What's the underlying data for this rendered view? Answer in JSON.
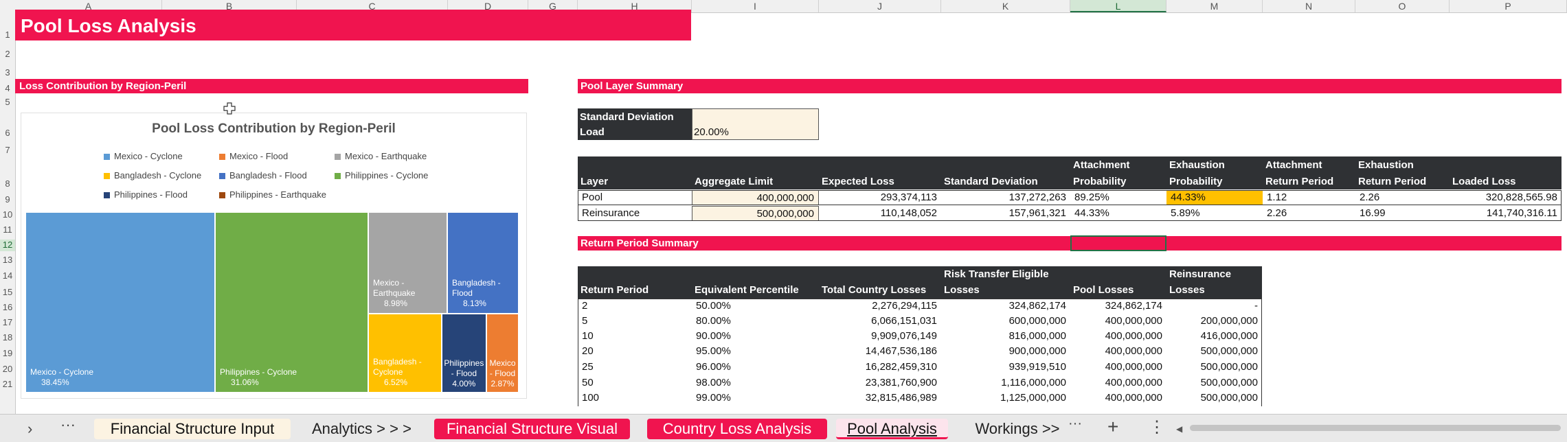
{
  "columns": [
    "A",
    "B",
    "C",
    "D",
    "G",
    "H",
    "I",
    "J",
    "K",
    "L",
    "M",
    "N",
    "O",
    "P"
  ],
  "rows": [
    "1",
    "2",
    "3",
    "4",
    "5",
    "6",
    "7",
    "8",
    "9",
    "10",
    "11",
    "12",
    "13",
    "14",
    "15",
    "16",
    "17",
    "18",
    "19",
    "20",
    "21"
  ],
  "title": "Pool Loss Analysis",
  "section_left": "Loss Contribution by Region-Peril",
  "section_pool_layer": "Pool Layer Summary",
  "section_return_period": "Return Period Summary",
  "std_dev_load": {
    "label_line1": "Standard Deviation",
    "label_line2": "Load",
    "value": "20.00%"
  },
  "layer_table": {
    "headers": [
      {
        "l1": "",
        "l2": "Layer"
      },
      {
        "l1": "",
        "l2": "Aggregate Limit"
      },
      {
        "l1": "",
        "l2": "Expected Loss"
      },
      {
        "l1": "",
        "l2": "Standard Deviation"
      },
      {
        "l1": "Attachment",
        "l2": "Probability"
      },
      {
        "l1": "Exhaustion",
        "l2": "Probability"
      },
      {
        "l1": "Attachment",
        "l2": "Return Period"
      },
      {
        "l1": "Exhaustion",
        "l2": "Return Period"
      },
      {
        "l1": "",
        "l2": "Loaded Loss"
      }
    ],
    "rows": [
      [
        "Pool",
        "400,000,000",
        "293,374,113",
        "137,272,263",
        "89.25%",
        "44.33%",
        "1.12",
        "2.26",
        "320,828,565.98"
      ],
      [
        "Reinsurance",
        "500,000,000",
        "110,148,052",
        "157,961,321",
        "44.33%",
        "5.89%",
        "2.26",
        "16.99",
        "141,740,316.11"
      ]
    ]
  },
  "rp_table": {
    "headers": [
      {
        "l1": "",
        "l2": "Return Period"
      },
      {
        "l1": "",
        "l2": "Equivalent Percentile"
      },
      {
        "l1": "",
        "l2": "Total Country Losses"
      },
      {
        "l1": "Risk Transfer Eligible",
        "l2": "Losses"
      },
      {
        "l1": "",
        "l2": "Pool Losses"
      },
      {
        "l1": "Reinsurance",
        "l2": "Losses"
      }
    ],
    "rows": [
      [
        "2",
        "50.00%",
        "2,276,294,115",
        "324,862,174",
        "324,862,174",
        "-"
      ],
      [
        "5",
        "80.00%",
        "6,066,151,031",
        "600,000,000",
        "400,000,000",
        "200,000,000"
      ],
      [
        "10",
        "90.00%",
        "9,909,076,149",
        "816,000,000",
        "400,000,000",
        "416,000,000"
      ],
      [
        "20",
        "95.00%",
        "14,467,536,186",
        "900,000,000",
        "400,000,000",
        "500,000,000"
      ],
      [
        "25",
        "96.00%",
        "16,282,459,310",
        "939,919,510",
        "400,000,000",
        "500,000,000"
      ],
      [
        "50",
        "98.00%",
        "23,381,760,900",
        "1,116,000,000",
        "400,000,000",
        "500,000,000"
      ],
      [
        "100",
        "99.00%",
        "32,815,486,989",
        "1,125,000,000",
        "400,000,000",
        "500,000,000"
      ]
    ]
  },
  "chart_data": {
    "type": "treemap",
    "title": "Pool Loss Contribution by Region-Peril",
    "legend": [
      {
        "name": "Mexico - Cyclone",
        "color": "#5b9bd5"
      },
      {
        "name": "Mexico - Flood",
        "color": "#ed7d31"
      },
      {
        "name": "Mexico - Earthquake",
        "color": "#a5a5a5"
      },
      {
        "name": "Bangladesh - Cyclone",
        "color": "#ffc000"
      },
      {
        "name": "Bangladesh - Flood",
        "color": "#4472c4"
      },
      {
        "name": "Philippines - Cyclone",
        "color": "#70ad47"
      },
      {
        "name": "Philippines - Flood",
        "color": "#264478"
      },
      {
        "name": "Philippines - Earthquake",
        "color": "#9e480e"
      }
    ],
    "cells": [
      {
        "label": "Mexico - Cyclone",
        "pct": "38.45%",
        "value": 38.45,
        "color": "#5b9bd5"
      },
      {
        "label": "Philippines - Cyclone",
        "pct": "31.06%",
        "value": 31.06,
        "color": "#70ad47"
      },
      {
        "label": "Mexico - Earthquake",
        "pct": "8.98%",
        "value": 8.98,
        "color": "#a5a5a5"
      },
      {
        "label": "Bangladesh - Flood",
        "pct": "8.13%",
        "value": 8.13,
        "color": "#4472c4"
      },
      {
        "label": "Bangladesh - Cyclone",
        "pct": "6.52%",
        "value": 6.52,
        "color": "#ffc000"
      },
      {
        "label": "Philippines - Flood",
        "pct": "4.00%",
        "value": 4.0,
        "color": "#264478"
      },
      {
        "label": "Mexico - Flood",
        "pct": "2.87%",
        "value": 2.87,
        "color": "#ed7d31"
      }
    ]
  },
  "tabs": [
    {
      "label": "Financial Structure Input",
      "style": "input"
    },
    {
      "label": "Analytics > > >",
      "style": "plain"
    },
    {
      "label": "Financial Structure Visual",
      "style": "red"
    },
    {
      "label": "Country Loss Analysis",
      "style": "red"
    },
    {
      "label": "Pool Analysis",
      "style": "active"
    },
    {
      "label": "Workings >>",
      "style": "plain"
    }
  ],
  "icons": {
    "nav_prev": "chevron-right",
    "more": "ellipsis",
    "add": "plus",
    "menu": "vertical-ellipsis"
  },
  "colors": {
    "accent": "#f0144f",
    "input_fill": "#fcf3e2",
    "highlight": "#ffc000",
    "header_dark": "#2f3134"
  }
}
